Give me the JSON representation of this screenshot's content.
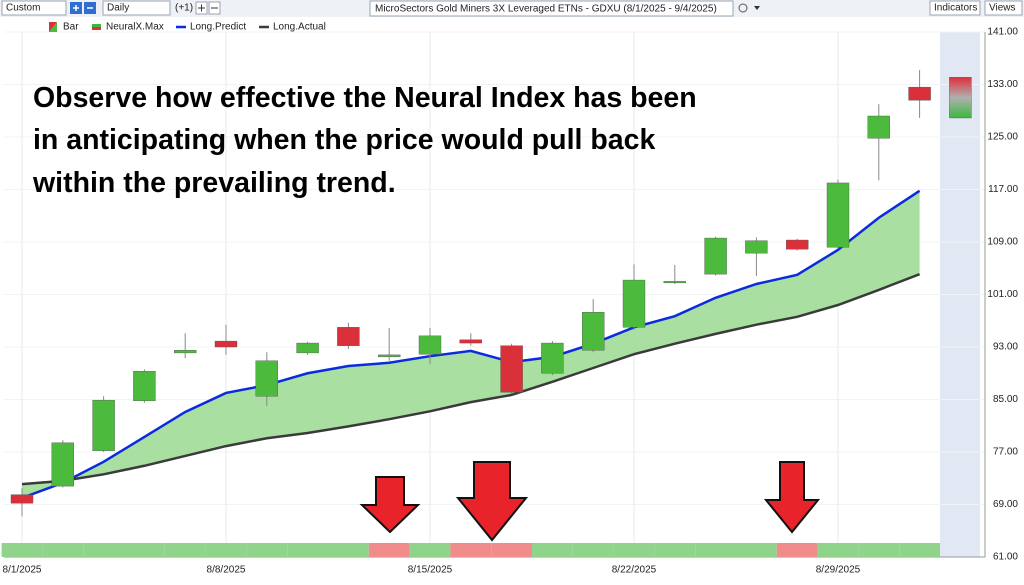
{
  "toolbar": {
    "period": "Custom",
    "interval": "Daily",
    "step": "(+1)",
    "indicators": "Indicators",
    "views": "Views"
  },
  "chart_data": {
    "type": "candlestick",
    "title": "MicroSectors Gold Miners 3X Leveraged ETNs - GDXU (8/1/2025 - 9/4/2025)",
    "annotation": [
      "Observe how effective the Neural Index has been",
      "in anticipating when the price would pull back",
      "within the prevailing trend."
    ],
    "categories": [
      "8/1/2025",
      null,
      null,
      null,
      null,
      "8/8/2025",
      null,
      null,
      null,
      null,
      "8/15/2025",
      null,
      null,
      null,
      null,
      "8/22/2025",
      null,
      null,
      null,
      null,
      "8/29/2025",
      null,
      null,
      null
    ],
    "candles": {
      "name": "Bar",
      "up_color": "#4cba3c",
      "down_color": "#d9303a",
      "open": [
        70.5,
        71.8,
        77.2,
        84.8,
        92.1,
        93.9,
        85.5,
        92.1,
        96.0,
        91.5,
        91.9,
        94.1,
        93.2,
        89.0,
        92.5,
        96.0,
        102.8,
        104.1,
        107.3,
        109.3,
        108.2,
        124.8,
        132.6,
        134.1
      ],
      "high": [
        71.5,
        78.8,
        85.5,
        89.6,
        95.1,
        96.4,
        92.2,
        93.8,
        96.7,
        95.9,
        95.9,
        95.1,
        93.5,
        93.9,
        100.3,
        105.6,
        105.5,
        109.8,
        109.7,
        109.5,
        118.5,
        130.0,
        135.2,
        134.1
      ],
      "low": [
        67.2,
        71.6,
        77.0,
        84.5,
        91.3,
        91.8,
        84.0,
        91.8,
        92.7,
        90.9,
        90.4,
        93.2,
        85.9,
        88.7,
        92.2,
        95.6,
        102.6,
        103.9,
        103.8,
        107.7,
        108.0,
        118.4,
        127.9,
        127.9
      ],
      "close": [
        69.2,
        78.4,
        84.9,
        89.3,
        92.5,
        93.0,
        90.9,
        93.6,
        93.2,
        91.8,
        94.7,
        93.6,
        86.1,
        93.6,
        98.3,
        103.2,
        103.0,
        109.6,
        109.2,
        107.9,
        118.0,
        128.2,
        130.6,
        127.9
      ]
    },
    "signal": {
      "name": "NeuralX.Max",
      "colors": [
        "#8fd48a",
        "#8fd48a",
        "#8fd48a",
        "#8fd48a",
        "#8fd48a",
        "#8fd48a",
        "#8fd48a",
        "#8fd48a",
        "#8fd48a",
        "#f08c8c",
        "#8fd48a",
        "#f08c8c",
        "#f08c8c",
        "#8fd48a",
        "#8fd48a",
        "#8fd48a",
        "#8fd48a",
        "#8fd48a",
        "#8fd48a",
        "#f08c8c",
        "#8fd48a",
        "#8fd48a",
        "#8fd48a"
      ]
    },
    "series": [
      {
        "name": "Long.Predict",
        "color": "#0a2be0",
        "values": [
          70.0,
          72.3,
          75.5,
          79.3,
          83.1,
          86.0,
          87.2,
          89.0,
          90.1,
          90.6,
          91.6,
          92.4,
          90.7,
          91.5,
          93.5,
          96.0,
          97.7,
          100.5,
          102.6,
          104.0,
          107.8,
          112.7,
          116.8,
          null
        ]
      },
      {
        "name": "Long.Actual",
        "color": "#3a3a3a",
        "values": [
          72.1,
          72.6,
          73.6,
          74.9,
          76.4,
          77.9,
          79.1,
          79.9,
          80.9,
          82.0,
          83.2,
          84.6,
          85.7,
          87.7,
          89.8,
          91.9,
          93.5,
          95.0,
          96.4,
          97.6,
          99.4,
          101.7,
          104.1,
          null
        ]
      }
    ],
    "fill_color": "#9ad98f",
    "ylim": [
      61,
      141
    ],
    "yticks": [
      {
        "value": 61,
        "label": "61.00"
      },
      {
        "value": 69,
        "label": "69.00"
      },
      {
        "value": 77,
        "label": "77.00"
      },
      {
        "value": 85,
        "label": "85.00"
      },
      {
        "value": 93,
        "label": "93.00"
      },
      {
        "value": 101,
        "label": "101.00"
      },
      {
        "value": 109,
        "label": "109.00"
      },
      {
        "value": 117,
        "label": "117.00"
      },
      {
        "value": 125,
        "label": "125.00"
      },
      {
        "value": 133,
        "label": "133.00"
      },
      {
        "value": 141,
        "label": "141.00"
      }
    ],
    "grid": true
  }
}
